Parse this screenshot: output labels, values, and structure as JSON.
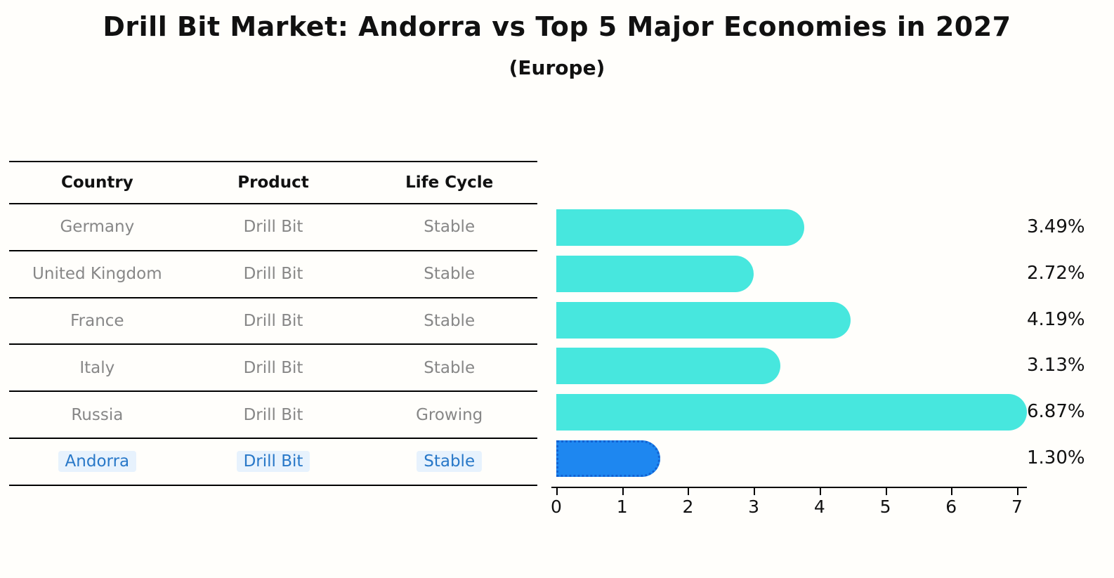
{
  "title": "Drill Bit Market: Andorra vs Top 5 Major Economies in 2027",
  "subtitle": "(Europe)",
  "table": {
    "headers": [
      "Country",
      "Product",
      "Life Cycle"
    ],
    "rows": [
      {
        "country": "Germany",
        "product": "Drill Bit",
        "life_cycle": "Stable",
        "highlight": false
      },
      {
        "country": "United Kingdom",
        "product": "Drill Bit",
        "life_cycle": "Stable",
        "highlight": false
      },
      {
        "country": "France",
        "product": "Drill Bit",
        "life_cycle": "Stable",
        "highlight": false
      },
      {
        "country": "Italy",
        "product": "Drill Bit",
        "life_cycle": "Stable",
        "highlight": false
      },
      {
        "country": "Russia",
        "product": "Drill Bit",
        "life_cycle": "Growing",
        "highlight": false
      },
      {
        "country": "Andorra",
        "product": "Drill Bit",
        "life_cycle": "Stable",
        "highlight": true
      }
    ]
  },
  "chart_data": {
    "type": "bar",
    "orientation": "horizontal",
    "title": "Drill Bit Market: Andorra vs Top 5 Major Economies in 2027",
    "subtitle": "(Europe)",
    "categories": [
      "Germany",
      "United Kingdom",
      "France",
      "Italy",
      "Russia",
      "Andorra"
    ],
    "values": [
      3.49,
      2.72,
      4.19,
      3.13,
      6.87,
      1.3
    ],
    "value_labels": [
      "3.49%",
      "2.72%",
      "4.19%",
      "3.13%",
      "6.87%",
      "1.30%"
    ],
    "x_ticks": [
      "0",
      "1",
      "2",
      "3",
      "4",
      "5",
      "6",
      "7"
    ],
    "xlim": [
      0,
      7.15
    ],
    "grid": false,
    "legend": false,
    "bar_color": "#47e7de",
    "highlight_color": "#1e87f0",
    "highlight_index": 5,
    "highlight_text_color": "#2878c8"
  }
}
